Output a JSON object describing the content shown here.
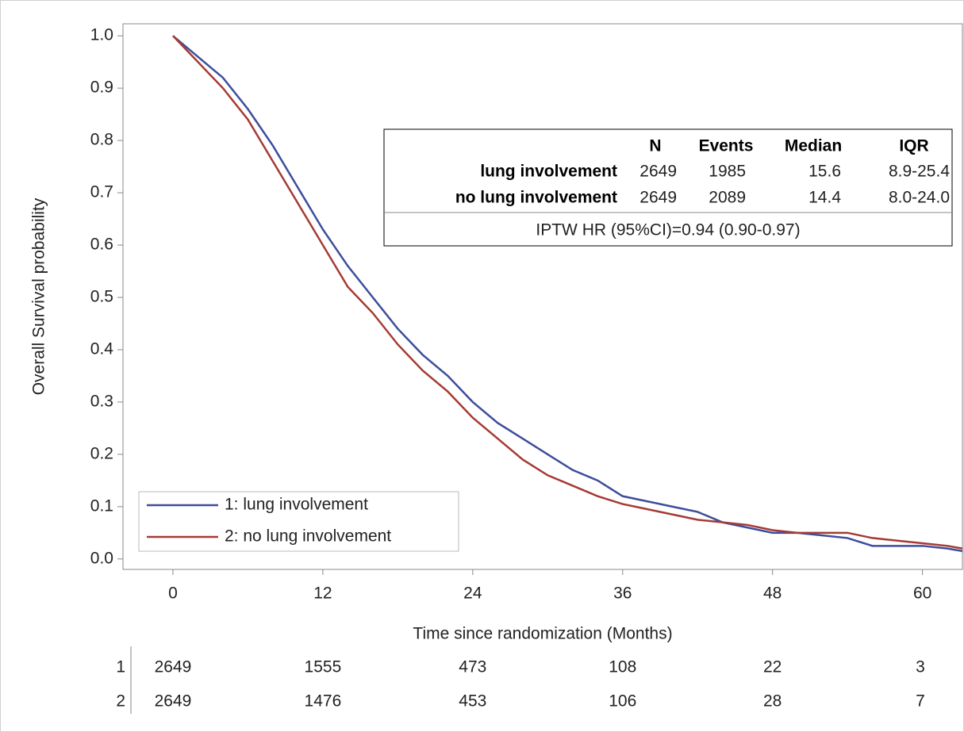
{
  "chart_data": {
    "type": "line",
    "x_label": "Time since randomization (Months)",
    "y_label": "Overall Survival probability",
    "xlim": [
      -4,
      63.2
    ],
    "ylim": [
      -0.02,
      1.023
    ],
    "xticks": [
      0,
      12,
      24,
      36,
      48,
      60
    ],
    "yticks": [
      {
        "value": 0,
        "label": "0.0"
      },
      0.1,
      0.2,
      0.3,
      0.4,
      0.5,
      0.6,
      0.7,
      0.8,
      0.9,
      {
        "value": 1,
        "label": "1.0"
      }
    ],
    "legend": "bottom-left",
    "series": [
      {
        "name": "1: lung involvement",
        "color": "#3d4d9c",
        "x": [
          0,
          2,
          4,
          6,
          8,
          10,
          12,
          14,
          16,
          18,
          20,
          22,
          24,
          26,
          28,
          30,
          32,
          34,
          36,
          38,
          40,
          42,
          44,
          46,
          48,
          50,
          52,
          54,
          56,
          58,
          60,
          62,
          63.2
        ],
        "y": [
          1.0,
          0.96,
          0.92,
          0.86,
          0.79,
          0.71,
          0.63,
          0.56,
          0.5,
          0.44,
          0.39,
          0.35,
          0.3,
          0.26,
          0.23,
          0.2,
          0.17,
          0.15,
          0.12,
          0.11,
          0.1,
          0.09,
          0.07,
          0.06,
          0.05,
          0.05,
          0.045,
          0.04,
          0.025,
          0.025,
          0.025,
          0.02,
          0.015
        ]
      },
      {
        "name": "2: no lung involvement",
        "color": "#a53b34",
        "x": [
          0,
          2,
          4,
          6,
          8,
          10,
          12,
          14,
          16,
          18,
          20,
          22,
          24,
          26,
          28,
          30,
          32,
          34,
          36,
          38,
          40,
          42,
          44,
          46,
          48,
          50,
          52,
          54,
          56,
          58,
          60,
          62,
          63.2
        ],
        "y": [
          1.0,
          0.95,
          0.9,
          0.84,
          0.76,
          0.68,
          0.6,
          0.52,
          0.47,
          0.41,
          0.36,
          0.32,
          0.27,
          0.23,
          0.19,
          0.16,
          0.14,
          0.12,
          0.105,
          0.095,
          0.085,
          0.075,
          0.07,
          0.065,
          0.055,
          0.05,
          0.05,
          0.05,
          0.04,
          0.035,
          0.03,
          0.025,
          0.02
        ]
      }
    ],
    "stats_table": {
      "columns": [
        "N",
        "Events",
        "Median",
        "IQR"
      ],
      "rows": [
        [
          "lung involvement",
          2649,
          1985,
          15.6,
          "8.9-25.4"
        ],
        [
          "no lung involvement",
          2649,
          2089,
          14.4,
          "8.0-24.0"
        ]
      ],
      "footer": "IPTW HR (95%CI)=0.94 (0.90-0.97)"
    },
    "at_risk": [
      {
        "label": "1",
        "values": [
          2649,
          1555,
          473,
          108,
          22,
          3
        ]
      },
      {
        "label": "2",
        "values": [
          2649,
          1476,
          453,
          106,
          28,
          7
        ]
      }
    ]
  }
}
